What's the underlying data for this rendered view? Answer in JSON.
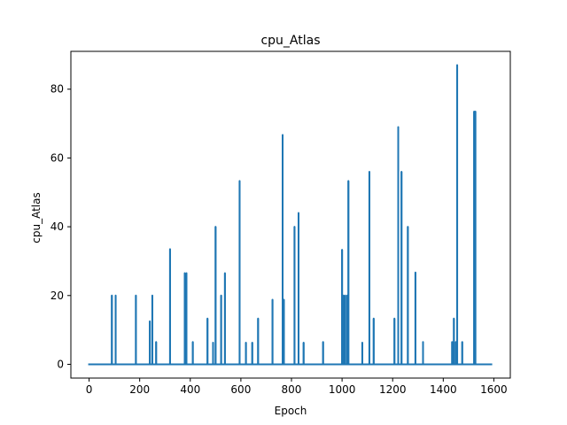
{
  "chart_data": {
    "type": "line",
    "title": "cpu_Atlas",
    "xlabel": "Epoch",
    "ylabel": "cpu_Atlas",
    "xlim": [
      -72,
      1665
    ],
    "ylim": [
      -4,
      91
    ],
    "xticks": [
      0,
      200,
      400,
      600,
      800,
      1000,
      1200,
      1400,
      1600
    ],
    "xtick_labels": [
      "0",
      "200",
      "400",
      "600",
      "800",
      "1000",
      "1200",
      "1400",
      "1600"
    ],
    "yticks": [
      0,
      20,
      40,
      60,
      80
    ],
    "ytick_labels": [
      "0",
      "20",
      "40",
      "60",
      "80"
    ],
    "grid": false,
    "series": [
      {
        "color": "#1f77b4",
        "x_range": [
          0,
          1590
        ],
        "baseline": 0,
        "spikes": [
          {
            "x": 90,
            "y": 20
          },
          {
            "x": 105,
            "y": 20
          },
          {
            "x": 185,
            "y": 20
          },
          {
            "x": 240,
            "y": 12.5
          },
          {
            "x": 250,
            "y": 20
          },
          {
            "x": 265,
            "y": 6.5
          },
          {
            "x": 320,
            "y": 33.5
          },
          {
            "x": 378,
            "y": 26.5
          },
          {
            "x": 385,
            "y": 26.5
          },
          {
            "x": 410,
            "y": 6.5
          },
          {
            "x": 468,
            "y": 13.3
          },
          {
            "x": 490,
            "y": 6.3
          },
          {
            "x": 500,
            "y": 40
          },
          {
            "x": 522,
            "y": 20
          },
          {
            "x": 537,
            "y": 26.5
          },
          {
            "x": 595,
            "y": 53.3
          },
          {
            "x": 620,
            "y": 6.3
          },
          {
            "x": 645,
            "y": 6.3
          },
          {
            "x": 668,
            "y": 13.3
          },
          {
            "x": 725,
            "y": 18.8
          },
          {
            "x": 765,
            "y": 66.7
          },
          {
            "x": 770,
            "y": 18.8
          },
          {
            "x": 812,
            "y": 40
          },
          {
            "x": 828,
            "y": 44
          },
          {
            "x": 848,
            "y": 6.3
          },
          {
            "x": 925,
            "y": 6.5
          },
          {
            "x": 1000,
            "y": 33.3
          },
          {
            "x": 1005,
            "y": 20
          },
          {
            "x": 1012,
            "y": 20
          },
          {
            "x": 1020,
            "y": 20
          },
          {
            "x": 1025,
            "y": 53.3
          },
          {
            "x": 1080,
            "y": 6.3
          },
          {
            "x": 1108,
            "y": 56
          },
          {
            "x": 1125,
            "y": 13.3
          },
          {
            "x": 1207,
            "y": 13.3
          },
          {
            "x": 1222,
            "y": 69
          },
          {
            "x": 1235,
            "y": 56
          },
          {
            "x": 1260,
            "y": 40
          },
          {
            "x": 1290,
            "y": 26.7
          },
          {
            "x": 1320,
            "y": 6.5
          },
          {
            "x": 1435,
            "y": 6.5
          },
          {
            "x": 1442,
            "y": 13.3
          },
          {
            "x": 1450,
            "y": 6.5
          },
          {
            "x": 1455,
            "y": 87
          },
          {
            "x": 1475,
            "y": 6.5
          },
          {
            "x": 1522,
            "y": 73.5
          },
          {
            "x": 1527,
            "y": 73.5
          }
        ]
      }
    ]
  }
}
